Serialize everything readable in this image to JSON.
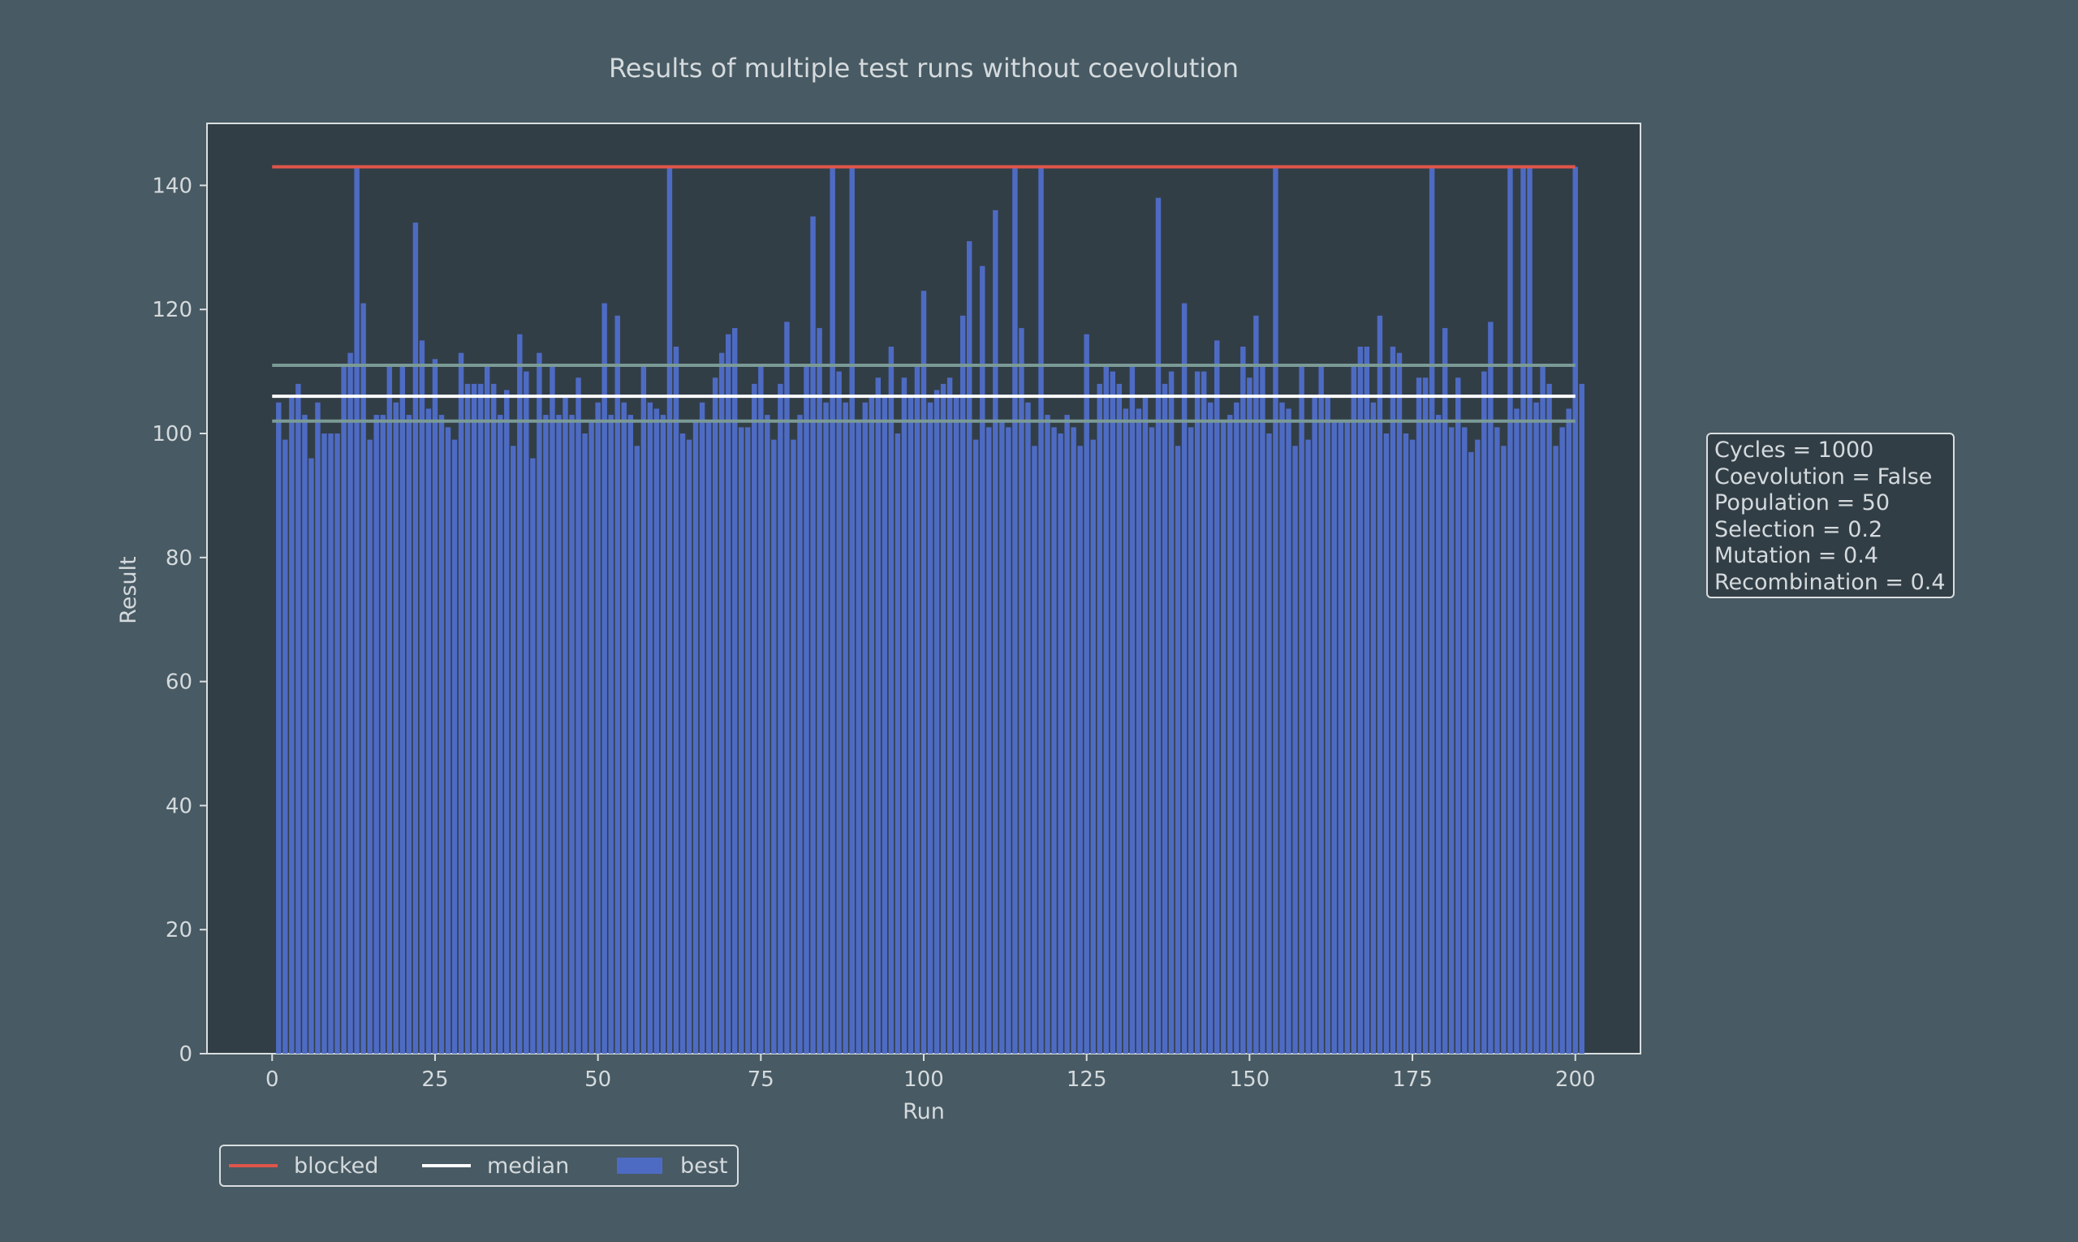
{
  "chart_data": {
    "type": "bar",
    "title": "Results of multiple test runs without coevolution",
    "xlabel": "Run",
    "ylabel": "Result",
    "xlim": [
      -10,
      210
    ],
    "ylim": [
      0,
      150
    ],
    "x_ticks": [
      0,
      25,
      50,
      75,
      100,
      125,
      150,
      175,
      200
    ],
    "y_ticks": [
      0,
      20,
      40,
      60,
      80,
      100,
      120,
      140
    ],
    "grid": false,
    "legend_position": "bottom-left, below axes",
    "series": [
      {
        "name": "best",
        "kind": "bar",
        "color": "#4e6bc4",
        "x_start": 1,
        "values": [
          105,
          99,
          106,
          108,
          103,
          96,
          105,
          100,
          100,
          100,
          111,
          113,
          143,
          121,
          99,
          103,
          103,
          111,
          105,
          111,
          103,
          134,
          115,
          104,
          112,
          103,
          101,
          99,
          113,
          108,
          108,
          108,
          111,
          108,
          103,
          107,
          98,
          116,
          110,
          96,
          113,
          103,
          111,
          103,
          106,
          103,
          109,
          100,
          102,
          105,
          121,
          103,
          119,
          105,
          103,
          98,
          111,
          105,
          104,
          103,
          143,
          114,
          100,
          99,
          102,
          105,
          102,
          109,
          113,
          116,
          117,
          101,
          101,
          108,
          111,
          103,
          99,
          108,
          118,
          99,
          103,
          111,
          135,
          117,
          105,
          143,
          110,
          105,
          143,
          102,
          105,
          106,
          109,
          106,
          114,
          100,
          109,
          106,
          111,
          123,
          105,
          107,
          108,
          109,
          106,
          119,
          131,
          99,
          127,
          101,
          136,
          102,
          101,
          143,
          117,
          105,
          98,
          143,
          103,
          101,
          100,
          103,
          101,
          98,
          116,
          99,
          108,
          111,
          110,
          108,
          104,
          111,
          104,
          106,
          101,
          138,
          108,
          110,
          98,
          121,
          101,
          110,
          110,
          105,
          115,
          102,
          103,
          105,
          114,
          109,
          119,
          111,
          100,
          143,
          105,
          104,
          98,
          111,
          99,
          106,
          111,
          106,
          102,
          102,
          102,
          111,
          114,
          114,
          105,
          119,
          100,
          114,
          113,
          100,
          99,
          109,
          109,
          143,
          103,
          117,
          101,
          109,
          101,
          97,
          99,
          110,
          118,
          101,
          98,
          143,
          104,
          143,
          143,
          105,
          111,
          108,
          98,
          101,
          104,
          143,
          108
        ]
      },
      {
        "name": "blocked",
        "kind": "hline",
        "color": "#e0554a",
        "y": 143,
        "x_range": [
          0,
          200
        ]
      },
      {
        "name": "median",
        "kind": "hline",
        "color": "#ffffff",
        "y": 106,
        "x_range": [
          0,
          200
        ]
      },
      {
        "kind": "hline",
        "color": "#7a9a96",
        "y": 111,
        "x_range": [
          0,
          200
        ]
      },
      {
        "kind": "hline",
        "color": "#7a9a96",
        "y": 102,
        "x_range": [
          0,
          200
        ]
      }
    ],
    "legend": [
      "blocked",
      "median",
      "best"
    ],
    "annotation": [
      "Cycles = 1000",
      "Coevolution = False",
      "Population = 50",
      "Selection = 0.2",
      "Mutation = 0.4",
      "Recombination = 0.4"
    ]
  },
  "colors": {
    "page_background": "#485a63",
    "axes_background": "#323e46",
    "text": "#d4dadd",
    "bar": "#4e6bc4",
    "blocked": "#e0554a",
    "median": "#ffffff",
    "bounds": "#7a9a96"
  }
}
